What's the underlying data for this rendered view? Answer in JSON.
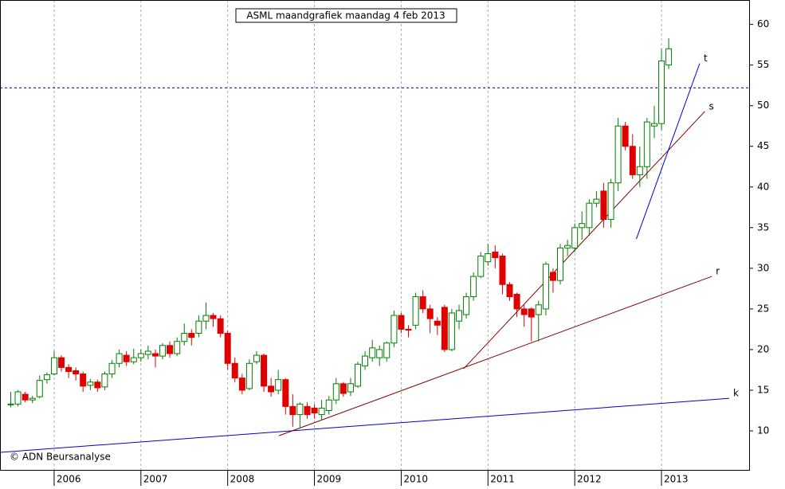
{
  "chart_data": {
    "type": "candlestick",
    "title": "ASML maandgrafiek maandag 4 feb 2013",
    "footnote": "© ADN Beursanalyse",
    "up_color": "#008000",
    "down_color": "#e00000",
    "xlim": [
      2005.376,
      2014.01
    ],
    "xticks": [
      2006,
      2007,
      2008,
      2009,
      2010,
      2011,
      2012,
      2013
    ],
    "ylim": [
      5.2,
      63.0
    ],
    "yticks": [
      10,
      15,
      20,
      25,
      30,
      35,
      40,
      45,
      50,
      55,
      60
    ],
    "grid": true,
    "hline": 52.2,
    "x": [
      2005.5,
      2005.583,
      2005.667,
      2005.75,
      2005.833,
      2005.917,
      2006.0,
      2006.083,
      2006.167,
      2006.25,
      2006.333,
      2006.417,
      2006.5,
      2006.583,
      2006.667,
      2006.75,
      2006.833,
      2006.917,
      2007.0,
      2007.083,
      2007.167,
      2007.25,
      2007.333,
      2007.417,
      2007.5,
      2007.583,
      2007.667,
      2007.75,
      2007.833,
      2007.917,
      2008.0,
      2008.083,
      2008.167,
      2008.25,
      2008.333,
      2008.417,
      2008.5,
      2008.583,
      2008.667,
      2008.75,
      2008.833,
      2008.917,
      2009.0,
      2009.083,
      2009.167,
      2009.25,
      2009.333,
      2009.417,
      2009.5,
      2009.583,
      2009.667,
      2009.75,
      2009.833,
      2009.917,
      2010.0,
      2010.083,
      2010.167,
      2010.25,
      2010.333,
      2010.417,
      2010.5,
      2010.583,
      2010.667,
      2010.75,
      2010.833,
      2010.917,
      2011.0,
      2011.083,
      2011.167,
      2011.25,
      2011.333,
      2011.417,
      2011.5,
      2011.583,
      2011.667,
      2011.75,
      2011.833,
      2011.917,
      2012.0,
      2012.083,
      2012.167,
      2012.25,
      2012.333,
      2012.417,
      2012.5,
      2012.583,
      2012.667,
      2012.75,
      2012.833,
      2012.917,
      2013.0,
      2013.083
    ],
    "open": [
      13.2,
      13.3,
      14.5,
      13.8,
      14.2,
      16.3,
      17.0,
      19.0,
      17.8,
      17.4,
      17.0,
      15.6,
      16.0,
      15.4,
      17.0,
      18.3,
      19.3,
      18.5,
      19.0,
      19.4,
      19.5,
      19.2,
      20.5,
      19.5,
      21.0,
      22.0,
      22.0,
      23.5,
      24.2,
      23.8,
      22.0,
      18.3,
      16.5,
      15.2,
      18.5,
      19.3,
      15.5,
      15.0,
      16.3,
      13.0,
      12.0,
      13.0,
      12.8,
      12.0,
      12.5,
      13.8,
      15.8,
      14.8,
      15.5,
      18.0,
      19.0,
      19.0,
      19.0,
      20.8,
      24.2,
      22.5,
      23.0,
      26.5,
      25.0,
      23.5,
      25.2,
      20.0,
      23.5,
      24.3,
      26.5,
      29.0,
      30.8,
      32.0,
      31.5,
      28.0,
      26.8,
      25.0,
      25.0,
      24.3,
      25.0,
      29.5,
      28.5,
      32.5,
      32.5,
      35.0,
      35.0,
      38.0,
      39.5,
      36.0,
      40.5,
      47.5,
      45.0,
      41.5,
      42.5,
      47.5,
      47.8,
      55.0
    ],
    "high": [
      14.8,
      15.0,
      14.8,
      14.3,
      16.8,
      17.2,
      19.8,
      19.3,
      18.2,
      17.8,
      17.3,
      16.4,
      16.3,
      17.3,
      18.7,
      20.0,
      19.8,
      20.1,
      20.0,
      20.5,
      20.0,
      20.8,
      21.0,
      21.5,
      23.2,
      22.5,
      24.2,
      25.8,
      24.5,
      24.2,
      22.3,
      19.0,
      17.0,
      18.8,
      19.8,
      19.5,
      16.5,
      17.5,
      16.5,
      14.5,
      13.5,
      13.5,
      13.3,
      13.8,
      14.3,
      16.5,
      16.0,
      16.5,
      18.5,
      19.8,
      21.2,
      20.5,
      21.0,
      24.8,
      24.5,
      23.0,
      27.0,
      27.3,
      25.5,
      24.0,
      25.5,
      25.0,
      25.5,
      27.0,
      29.5,
      32.0,
      33.0,
      32.8,
      31.8,
      28.3,
      27.0,
      25.5,
      25.2,
      26.0,
      30.8,
      30.0,
      33.0,
      33.5,
      35.5,
      37.0,
      38.5,
      39.5,
      40.5,
      41.0,
      48.5,
      48.0,
      46.5,
      45.0,
      48.5,
      50.0,
      57.0,
      58.3
    ],
    "low": [
      12.9,
      13.0,
      13.5,
      13.4,
      14.0,
      15.8,
      16.8,
      17.3,
      16.5,
      16.2,
      14.8,
      15.0,
      14.8,
      15.0,
      16.5,
      17.8,
      18.0,
      18.2,
      18.5,
      18.8,
      17.8,
      18.8,
      19.0,
      19.2,
      20.5,
      20.5,
      21.5,
      22.5,
      22.8,
      21.5,
      17.5,
      16.0,
      14.5,
      15.0,
      18.2,
      14.8,
      14.2,
      14.5,
      12.0,
      10.5,
      10.3,
      11.5,
      11.5,
      11.3,
      12.0,
      13.3,
      14.2,
      14.3,
      15.3,
      17.5,
      18.5,
      18.0,
      18.5,
      20.3,
      22.0,
      21.5,
      22.5,
      24.5,
      22.0,
      21.8,
      19.7,
      19.8,
      22.5,
      23.8,
      26.0,
      28.8,
      30.3,
      30.0,
      26.8,
      26.0,
      24.0,
      22.8,
      21.0,
      21.0,
      24.2,
      27.0,
      28.0,
      31.5,
      32.0,
      33.5,
      34.0,
      37.5,
      35.0,
      35.0,
      39.5,
      44.5,
      41.0,
      40.0,
      41.0,
      46.0,
      47.0,
      54.5
    ],
    "close": [
      13.3,
      14.8,
      13.8,
      14.0,
      16.2,
      16.9,
      19.0,
      17.8,
      17.3,
      17.0,
      15.5,
      16.0,
      15.3,
      17.0,
      18.3,
      19.5,
      18.5,
      19.0,
      19.5,
      19.8,
      19.2,
      20.5,
      19.5,
      21.0,
      22.0,
      21.5,
      23.5,
      24.2,
      23.8,
      22.0,
      18.3,
      16.5,
      15.0,
      18.3,
      19.3,
      15.5,
      14.8,
      16.3,
      13.0,
      12.0,
      13.3,
      12.0,
      12.2,
      12.8,
      13.8,
      15.8,
      14.6,
      15.8,
      18.2,
      19.2,
      20.2,
      20.0,
      20.8,
      24.2,
      22.5,
      22.4,
      26.5,
      25.0,
      23.8,
      23.0,
      20.0,
      24.5,
      24.8,
      26.5,
      29.0,
      31.5,
      31.8,
      31.3,
      28.0,
      26.5,
      25.0,
      24.3,
      24.0,
      25.5,
      30.5,
      28.5,
      32.5,
      32.8,
      35.0,
      35.5,
      38.0,
      38.5,
      36.0,
      40.5,
      47.5,
      45.0,
      41.5,
      42.5,
      48.0,
      47.8,
      55.5,
      57.0
    ],
    "trendlines": [
      {
        "label": "k",
        "color": "#0000cc",
        "x": [
          2005.376,
          2013.78
        ],
        "y": [
          7.35,
          14.0
        ]
      },
      {
        "label": "r",
        "color": "#800000",
        "x": [
          2008.59,
          2013.58
        ],
        "y": [
          9.4,
          29.0
        ]
      },
      {
        "label": "s",
        "color": "#800000",
        "x": [
          2010.72,
          2013.5
        ],
        "y": [
          17.65,
          49.3
        ]
      },
      {
        "label": "t",
        "color": "#0000cc",
        "x": [
          2012.71,
          2013.44
        ],
        "y": [
          33.6,
          55.2
        ]
      }
    ]
  }
}
